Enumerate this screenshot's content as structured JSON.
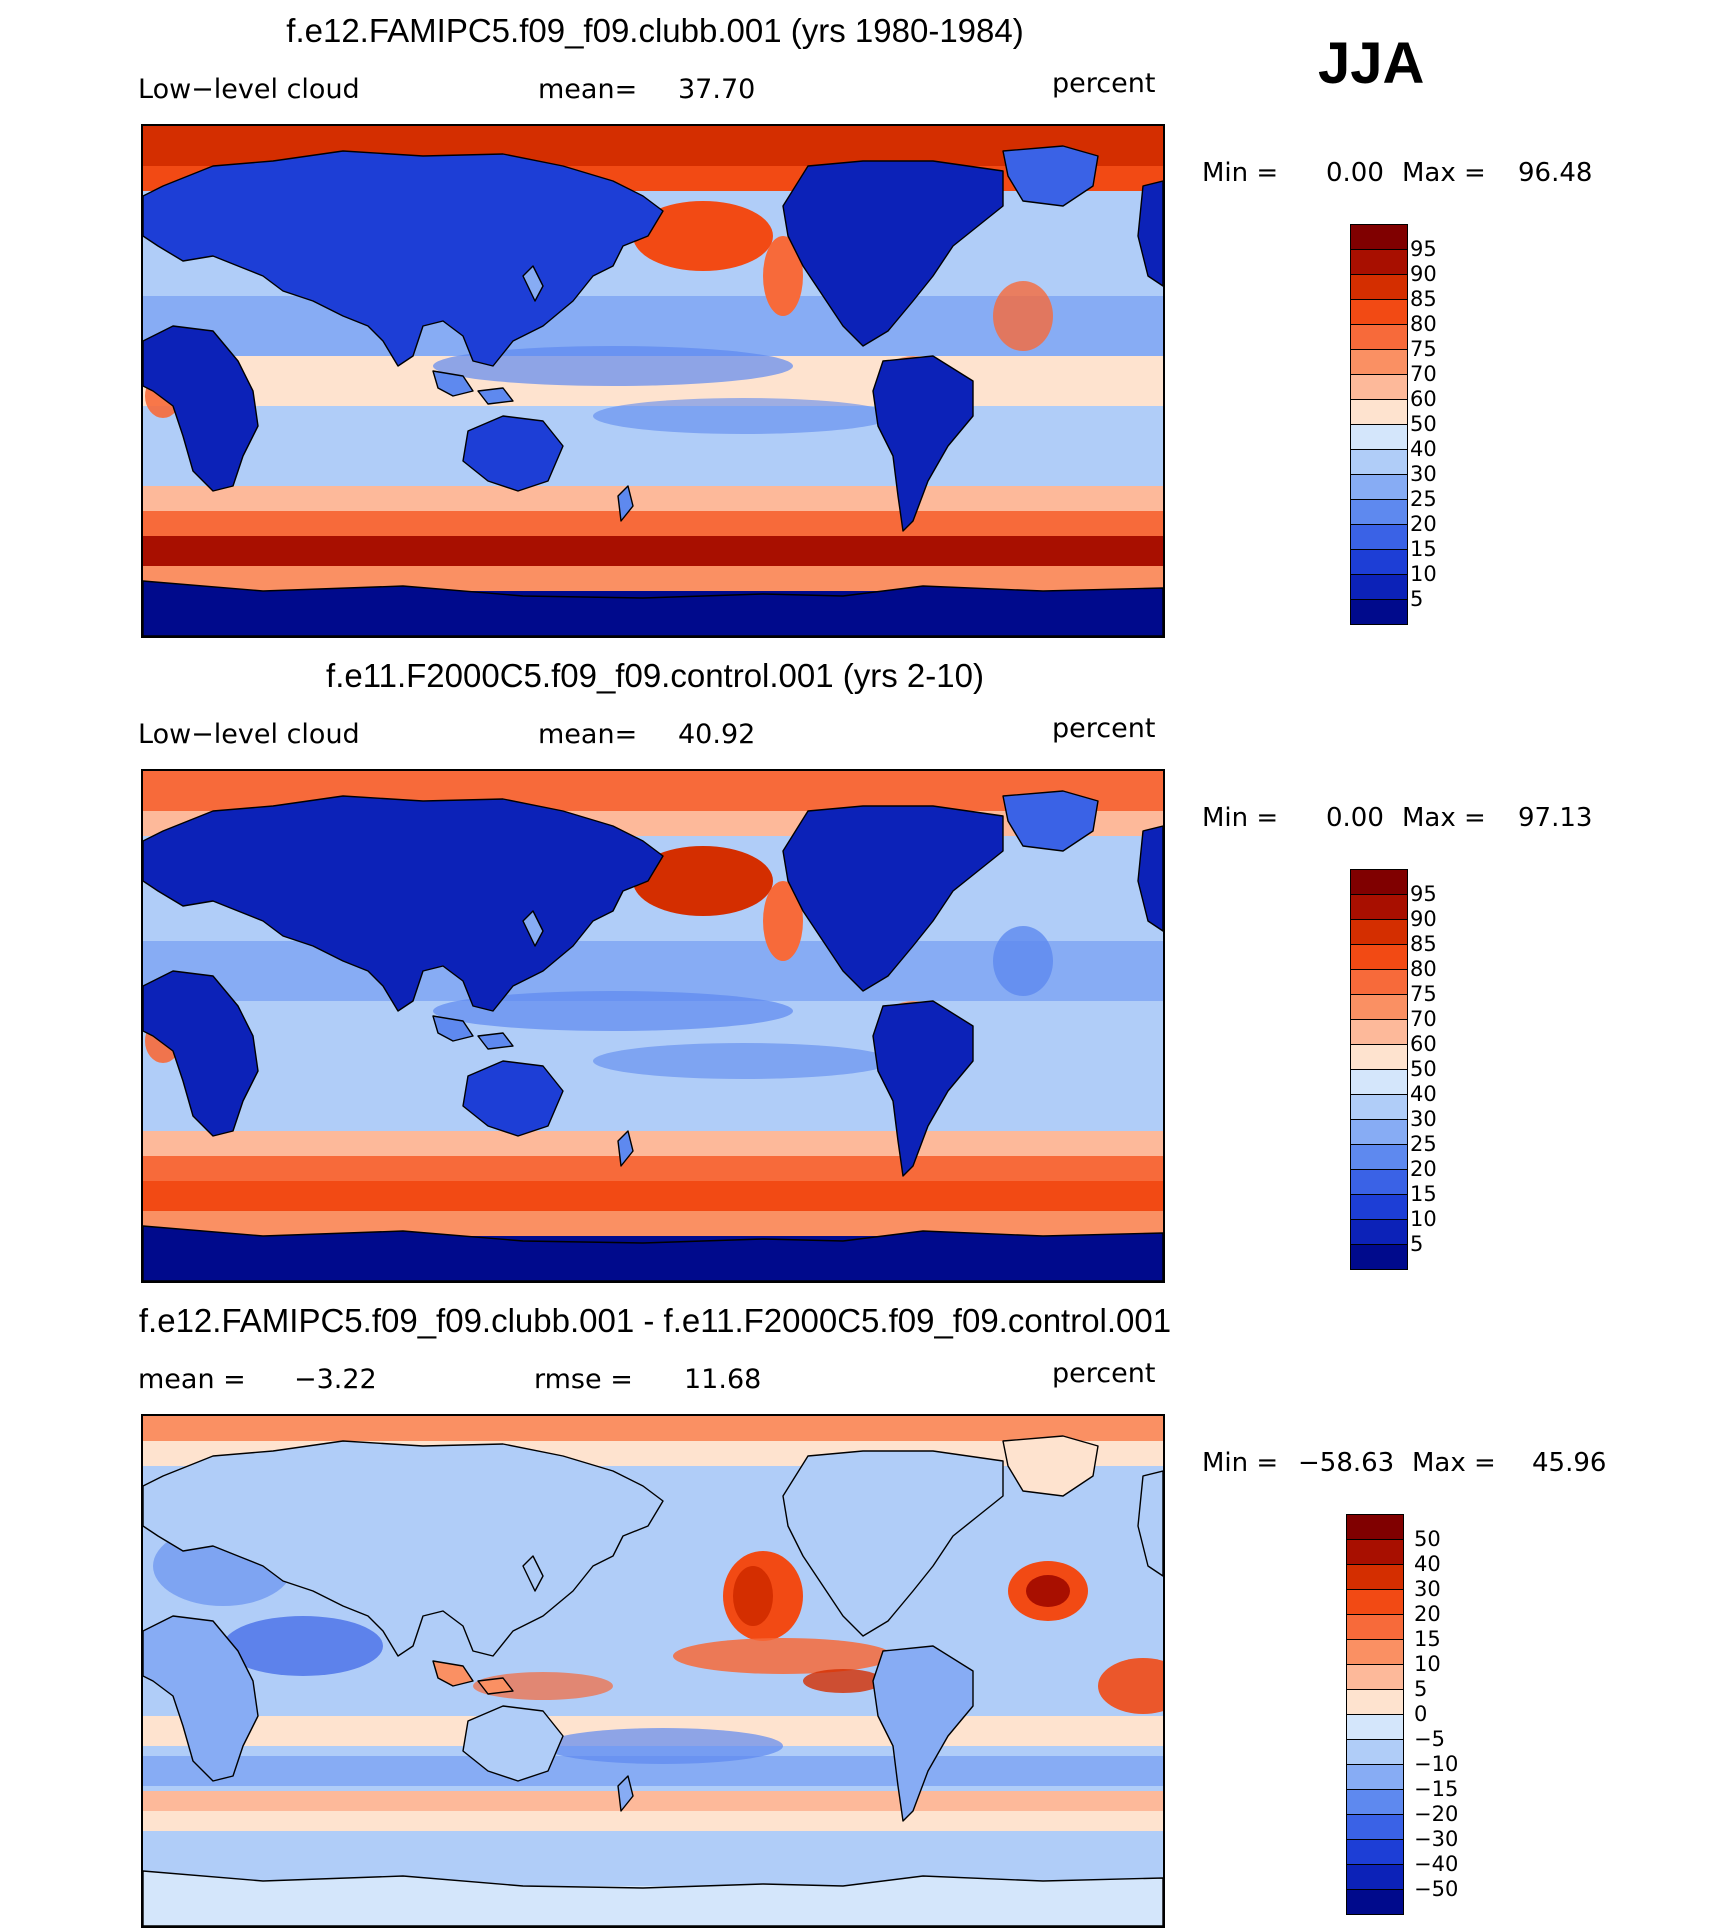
{
  "season": "JJA",
  "colors": {
    "warm": [
      "#800000",
      "#a80f00",
      "#d42e00",
      "#f24a14",
      "#f76a3a",
      "#fa9063",
      "#fdb99a",
      "#fee3cf"
    ],
    "cool": [
      "#d4e6fb",
      "#b0cdf8",
      "#87acf4",
      "#5e89ef",
      "#3a62e6",
      "#1d3ed6",
      "#0c22b8",
      "#000a8c"
    ],
    "coast": "#000000"
  },
  "panels": [
    {
      "title": "f.e12.FAMIPC5.f09_f09.clubb.001 (yrs 1980-1984)",
      "left_label": "Low−level cloud",
      "mid_label": "mean=",
      "mid_value": "37.70",
      "unit": "percent",
      "min_label": "Min =",
      "min_value": "0.00",
      "max_label": "Max =",
      "max_value": "96.48",
      "levels": [
        "95",
        "90",
        "85",
        "80",
        "75",
        "70",
        "60",
        "50",
        "40",
        "30",
        "25",
        "20",
        "15",
        "10",
        "5"
      ],
      "pattern": "abs"
    },
    {
      "title": "f.e11.F2000C5.f09_f09.control.001 (yrs 2-10)",
      "left_label": "Low−level cloud",
      "mid_label": "mean=",
      "mid_value": "40.92",
      "unit": "percent",
      "min_label": "Min =",
      "min_value": "0.00",
      "max_label": "Max =",
      "max_value": "97.13",
      "levels": [
        "95",
        "90",
        "85",
        "80",
        "75",
        "70",
        "60",
        "50",
        "40",
        "30",
        "25",
        "20",
        "15",
        "10",
        "5"
      ],
      "pattern": "abs2"
    },
    {
      "title": "f.e12.FAMIPC5.f09_f09.clubb.001 - f.e11.F2000C5.f09_f09.control.001",
      "left_label": "mean =",
      "left_value": "−3.22",
      "mid_label": "rmse =",
      "mid_value": "11.68",
      "unit": "percent",
      "min_label": "Min =",
      "min_value": "−58.63",
      "max_label": "Max =",
      "max_value": "45.96",
      "levels": [
        "50",
        "40",
        "30",
        "20",
        "15",
        "10",
        "5",
        "0",
        "−5",
        "−10",
        "−15",
        "−20",
        "−30",
        "−40",
        "−50"
      ],
      "pattern": "diff"
    }
  ]
}
